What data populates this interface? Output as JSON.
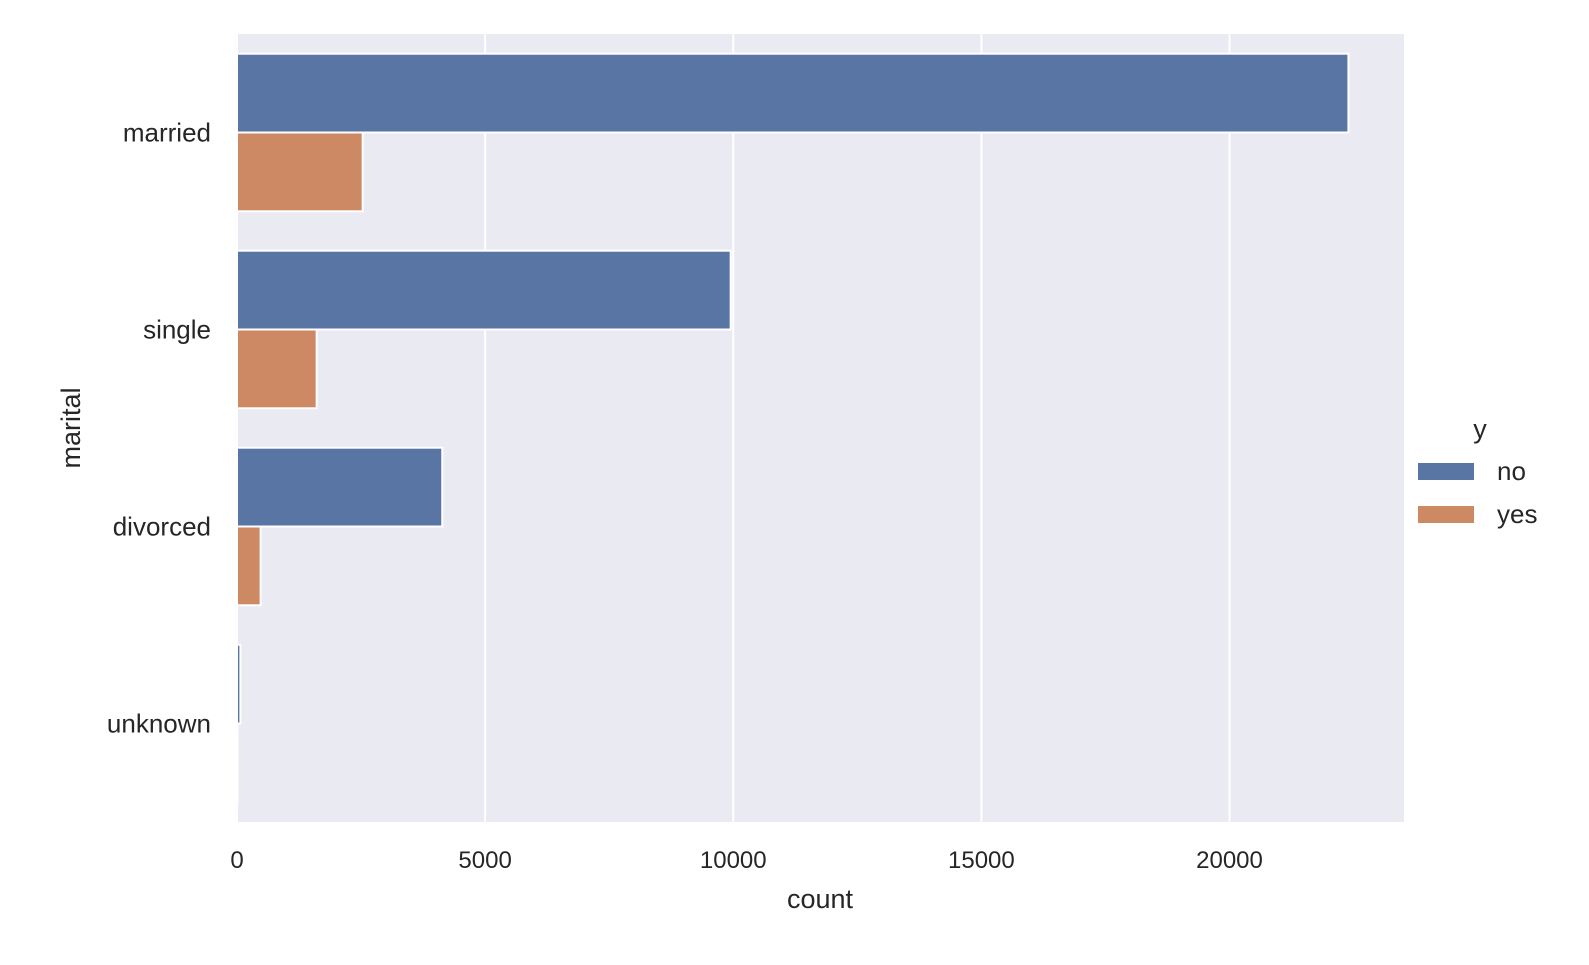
{
  "chart_data": {
    "type": "bar",
    "orientation": "horizontal",
    "categories": [
      "married",
      "single",
      "divorced",
      "unknown"
    ],
    "series": [
      {
        "name": "no",
        "values": [
          22396,
          9948,
          4136,
          68
        ],
        "color": "#5975a4"
      },
      {
        "name": "yes",
        "values": [
          2532,
          1605,
          476,
          12
        ],
        "color": "#cc8963"
      }
    ],
    "xlabel": "count",
    "ylabel": "marital",
    "xlim": [
      0,
      23516
    ],
    "xticks": [
      0,
      5000,
      10000,
      15000,
      20000
    ],
    "grid": true,
    "background": "#eaeaf2",
    "legend": {
      "title": "y",
      "placement": "right",
      "entries": [
        "no",
        "yes"
      ]
    }
  }
}
